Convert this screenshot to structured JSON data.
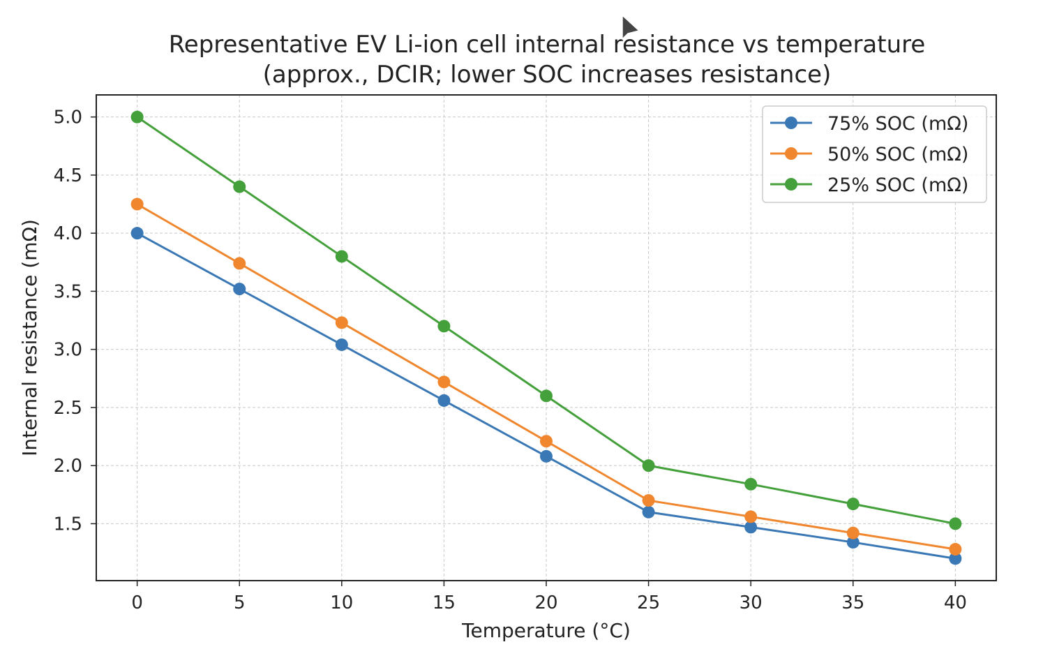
{
  "chart_data": {
    "type": "line",
    "title": "Representative EV Li-ion cell internal resistance vs temperature",
    "subtitle": "(approx., DCIR; lower SOC increases resistance)",
    "xlabel": "Temperature (°C)",
    "ylabel": "Internal resistance (mΩ)",
    "x": [
      0,
      5,
      10,
      15,
      20,
      25,
      30,
      35,
      40
    ],
    "xlim": [
      -2,
      42
    ],
    "ylim": [
      1.01,
      5.19
    ],
    "xticks": [
      0,
      5,
      10,
      15,
      20,
      25,
      30,
      35,
      40
    ],
    "yticks": [
      "1.5",
      "2.0",
      "2.5",
      "3.0",
      "3.5",
      "4.0",
      "4.5",
      "5.0"
    ],
    "grid": true,
    "legend_position": "top-right",
    "series": [
      {
        "name": "75% SOC (mΩ)",
        "color": "#3a78b5",
        "values": [
          4.0,
          3.52,
          3.04,
          2.56,
          2.08,
          1.6,
          1.47,
          1.34,
          1.2
        ]
      },
      {
        "name": "50% SOC (mΩ)",
        "color": "#f0862d",
        "values": [
          4.25,
          3.74,
          3.23,
          2.72,
          2.21,
          1.7,
          1.56,
          1.42,
          1.28
        ]
      },
      {
        "name": "25% SOC (mΩ)",
        "color": "#43a03a",
        "values": [
          5.0,
          4.4,
          3.8,
          3.2,
          2.6,
          2.0,
          1.84,
          1.67,
          1.5
        ]
      }
    ]
  }
}
